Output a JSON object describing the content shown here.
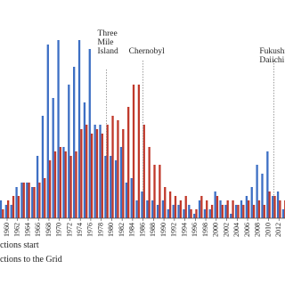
{
  "chart_data": {
    "type": "bar",
    "categories": [
      null,
      "1960",
      null,
      "1962",
      null,
      "1964",
      null,
      "1966",
      null,
      "1968",
      null,
      "1970",
      null,
      "1972",
      null,
      "1974",
      null,
      "1976",
      null,
      "1978",
      null,
      "1980",
      null,
      "1982",
      null,
      "1984",
      null,
      "1986",
      null,
      "1988",
      null,
      "1990",
      null,
      "1992",
      null,
      "1994",
      null,
      "1996",
      null,
      "1998",
      null,
      "2000",
      null,
      "2002",
      null,
      "2004",
      null,
      "2006",
      null,
      "2008",
      null,
      "2010",
      null,
      "2012",
      null
    ],
    "series": [
      {
        "name": "ctions start",
        "color": "#3d6fc4",
        "values": [
          4,
          3,
          3,
          7,
          8,
          8,
          7,
          14,
          23,
          39,
          27,
          40,
          16,
          30,
          34,
          40,
          26,
          38,
          21,
          21,
          14,
          14,
          13,
          16,
          8,
          9,
          4,
          6,
          4,
          4,
          3,
          4,
          2,
          3,
          3,
          2,
          3,
          1,
          4,
          2,
          2,
          6,
          4,
          3,
          1,
          3,
          4,
          5,
          7,
          12,
          10,
          15,
          5,
          6,
          2
        ]
      },
      {
        "name": "ctions to the Grid",
        "color": "#c0392b",
        "values": [
          2,
          4,
          5,
          5,
          8,
          8,
          7,
          8,
          9,
          13,
          15,
          16,
          15,
          14,
          15,
          20,
          21,
          19,
          20,
          19,
          21,
          23,
          22,
          20,
          25,
          30,
          30,
          21,
          16,
          12,
          12,
          7,
          6,
          5,
          4,
          5,
          2,
          2,
          5,
          4,
          3,
          5,
          3,
          4,
          4,
          3,
          3,
          4,
          3,
          4,
          3,
          6,
          5,
          4,
          4
        ]
      }
    ],
    "annotations": [
      {
        "lines": [
          "Three",
          "Mile",
          "Island"
        ],
        "category": "1978",
        "offset": 1
      },
      {
        "lines": [
          "Chernobyl"
        ],
        "category": "1986",
        "offset": 0
      },
      {
        "lines": [
          "Fukushima",
          "Daiichi"
        ],
        "category": "2010",
        "offset": 1
      }
    ]
  }
}
